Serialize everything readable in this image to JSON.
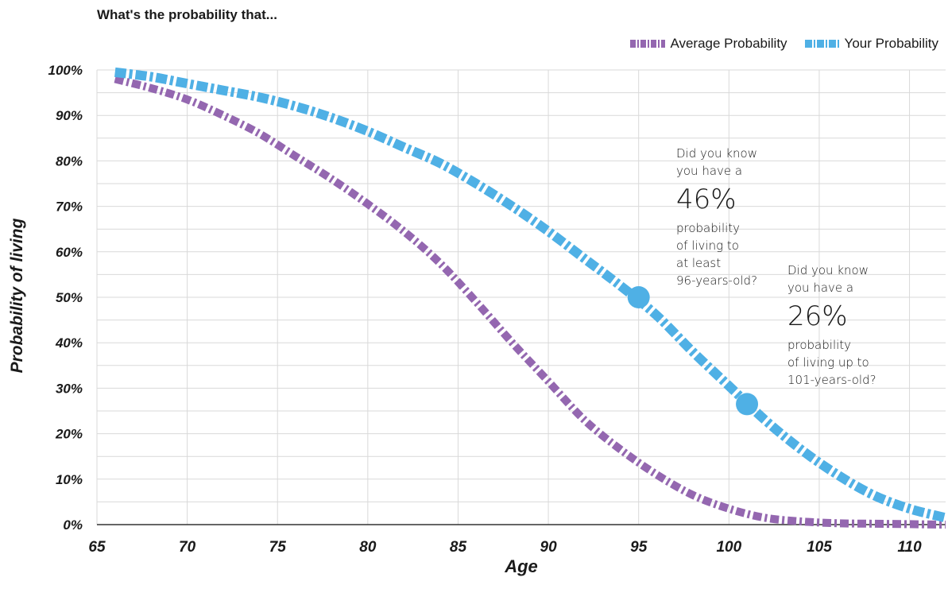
{
  "chart_data": {
    "type": "line",
    "title": "What's the probability that...",
    "xlabel": "Age",
    "ylabel": "Probability of living",
    "xlim": [
      65,
      112
    ],
    "ylim": [
      0,
      100
    ],
    "x_ticks": [
      "65",
      "70",
      "75",
      "80",
      "85",
      "90",
      "95",
      "100",
      "105",
      "110"
    ],
    "y_ticks": [
      "0%",
      "10%",
      "20%",
      "30%",
      "40%",
      "50%",
      "60%",
      "70%",
      "80%",
      "90%",
      "100%"
    ],
    "grid": true,
    "legend_position": "top-right",
    "series": [
      {
        "name": "Average Probability",
        "color": "#9467b0",
        "x": [
          66,
          68,
          70,
          72,
          74,
          76,
          78,
          80,
          82,
          84,
          86,
          88,
          90,
          92,
          94,
          96,
          98,
          100,
          102,
          104,
          106,
          108,
          110,
          112
        ],
        "y": [
          98,
          96,
          93.5,
          90,
          86,
          81,
          76,
          70.5,
          64.5,
          57.5,
          49,
          40,
          31.5,
          23,
          16.5,
          11,
          6.5,
          3.5,
          1.5,
          0.7,
          0.3,
          0.2,
          0.1,
          0
        ]
      },
      {
        "name": "Your Probability",
        "color": "#4fb0e5",
        "x": [
          66,
          68,
          70,
          72,
          74,
          76,
          78,
          80,
          82,
          84,
          86,
          88,
          90,
          92,
          94,
          96,
          98,
          100,
          102,
          104,
          106,
          108,
          110,
          112
        ],
        "y": [
          99.5,
          98.5,
          97,
          95.5,
          94,
          92,
          89.5,
          86.5,
          83,
          79.5,
          75,
          70,
          64.5,
          58.5,
          52.5,
          46,
          38,
          30.5,
          23,
          16.5,
          11,
          6.5,
          3.5,
          1.5
        ]
      }
    ],
    "highlight_points": [
      {
        "series": "Your Probability",
        "x": 95,
        "y": 50
      },
      {
        "series": "Your Probability",
        "x": 101,
        "y": 26.5
      }
    ],
    "annotations": [
      {
        "lines_top": [
          "Did you know",
          "you have a"
        ],
        "big": "46%",
        "lines_bottom": [
          "probability",
          "of living to",
          "at least",
          "96-years-old?"
        ]
      },
      {
        "lines_top": [
          "Did you know",
          "you have a"
        ],
        "big": "26%",
        "lines_bottom": [
          "probability",
          "of living up to",
          "101-years-old?"
        ]
      }
    ]
  }
}
